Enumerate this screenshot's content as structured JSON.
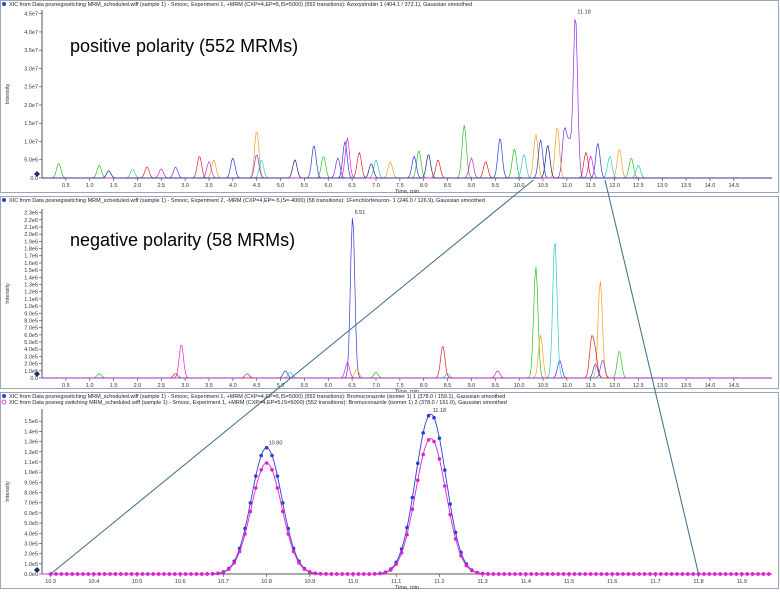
{
  "colors": {
    "frame": "#9aa7b8",
    "axis": "#555555",
    "zoom_line": "#3b6a87",
    "trace_blue": "#2b3ed6",
    "trace_magenta": "#e020d0",
    "trace_purple": "#8a2be2",
    "trace_green": "#28c028",
    "trace_cyan": "#30c8c8",
    "trace_orange": "#f0a020",
    "trace_red": "#e02020",
    "trace_dkblue": "#1a2b7a"
  },
  "chart_data": [
    {
      "type": "line",
      "title": "XIC from Data posnegswitching MRM_scheduled.wiff (sample 1) - Smooc, Experiment 1, +MRM (CXP=4,EP=5,IS=5000) (552 transitions): Azoxystrobin 1 (404.1 / 372.1), Gaussian smoothed",
      "overlay_label": "positive polarity (552 MRMs)",
      "xlabel": "Time, min",
      "ylabel": "Intensity",
      "xlim": [
        0,
        15.3
      ],
      "ylim": [
        0,
        46000000
      ],
      "x_ticks": [
        0.5,
        1.0,
        1.5,
        2.0,
        2.5,
        3.0,
        3.5,
        4.0,
        4.5,
        5.0,
        5.5,
        6.0,
        6.5,
        7.0,
        7.5,
        8.0,
        8.5,
        9.0,
        9.5,
        10.0,
        10.5,
        11.0,
        11.5,
        12.0,
        12.5,
        13.0,
        13.5,
        14.0,
        14.5
      ],
      "x_tick_labels": [
        "0.5",
        "1.0",
        "1.5",
        "2.0",
        "2.5",
        "3.0",
        "3.5",
        "4.0",
        "4.5",
        "5.0",
        "5.5",
        "6.0",
        "6.5",
        "7.0",
        "7.5",
        "8.0",
        "8.5",
        "9.0",
        "9.5",
        "10.0",
        "10.5",
        "11.0",
        "11.5",
        "12.0",
        "12.5",
        "13.0",
        "13.5",
        "14.0",
        "14.5"
      ],
      "y_ticks": [
        0,
        5000000,
        10000000,
        15000000,
        20000000,
        25000000,
        30000000,
        35000000,
        40000000,
        45000000
      ],
      "y_tick_labels": [
        "0.0",
        "5.0e6",
        "1.0e7",
        "1.5e7",
        "2.0e7",
        "2.5e7",
        "3.0e7",
        "3.5e7",
        "4.0e7",
        "4.5e7"
      ],
      "peak_labels": [
        {
          "x": 11.18,
          "y": 44500000,
          "text": "11.18"
        }
      ],
      "series": [
        {
          "color": "trace_purple",
          "peaks": [
            [
              11.18,
              44500000
            ],
            [
              11.05,
              9000000
            ],
            [
              10.95,
              13000000
            ],
            [
              4.5,
              6500000
            ],
            [
              2.8,
              3000000
            ],
            [
              6.2,
              5500000
            ]
          ]
        },
        {
          "color": "trace_orange",
          "peaks": [
            [
              4.5,
              13000000
            ],
            [
              10.35,
              12000000
            ],
            [
              10.8,
              14000000
            ],
            [
              12.1,
              8000000
            ],
            [
              3.6,
              5000000
            ],
            [
              7.3,
              4500000
            ]
          ]
        },
        {
          "color": "trace_green",
          "peaks": [
            [
              8.85,
              14500000
            ],
            [
              0.35,
              4000000
            ],
            [
              1.2,
              3500000
            ],
            [
              7.9,
              7500000
            ],
            [
              9.9,
              8000000
            ],
            [
              12.35,
              5500000
            ],
            [
              5.9,
              6000000
            ]
          ]
        },
        {
          "color": "trace_blue",
          "peaks": [
            [
              5.7,
              9000000
            ],
            [
              6.35,
              10000000
            ],
            [
              9.6,
              11000000
            ],
            [
              10.45,
              10500000
            ],
            [
              11.65,
              9500000
            ],
            [
              4.0,
              5500000
            ],
            [
              7.8,
              6000000
            ]
          ]
        },
        {
          "color": "trace_red",
          "peaks": [
            [
              3.3,
              6000000
            ],
            [
              6.65,
              7000000
            ],
            [
              8.3,
              5000000
            ],
            [
              11.4,
              7000000
            ],
            [
              2.2,
              3000000
            ],
            [
              9.3,
              4500000
            ]
          ]
        },
        {
          "color": "trace_cyan",
          "peaks": [
            [
              4.6,
              5000000
            ],
            [
              7.0,
              5000000
            ],
            [
              10.1,
              6500000
            ],
            [
              11.9,
              6000000
            ],
            [
              12.5,
              3500000
            ],
            [
              1.9,
              2500000
            ]
          ]
        },
        {
          "color": "trace_magenta",
          "peaks": [
            [
              6.4,
              11000000
            ],
            [
              3.5,
              4500000
            ],
            [
              9.0,
              5500000
            ],
            [
              11.5,
              6000000
            ],
            [
              2.5,
              2500000
            ]
          ]
        },
        {
          "color": "trace_dkblue",
          "peaks": [
            [
              5.3,
              5000000
            ],
            [
              8.1,
              6500000
            ],
            [
              10.6,
              9000000
            ],
            [
              6.9,
              4000000
            ],
            [
              1.4,
              2000000
            ]
          ]
        }
      ]
    },
    {
      "type": "line",
      "title": "XIC from Data posnegswitching MRM_scheduled.wiff (sample 1) - Smooc, Experiment 2, -MRM (CXP=4,EP=-5,IS=-4000) (58 transitions): 1Fenchlorfenuron- 1 (246.0 / 126.9), Gaussian smoothed",
      "overlay_label": "negative polarity (58 MRMs)",
      "xlabel": "Time, min",
      "ylabel": "Intensity",
      "xlim": [
        0,
        15.3
      ],
      "ylim": [
        0,
        2350000
      ],
      "x_ticks": [
        0.5,
        1.0,
        1.5,
        2.0,
        2.5,
        3.0,
        3.5,
        4.0,
        4.5,
        5.0,
        5.5,
        6.0,
        6.5,
        7.0,
        7.5,
        8.0,
        8.5,
        9.0,
        9.5,
        10.0,
        10.5,
        11.0,
        11.5,
        12.0,
        12.5,
        13.0,
        13.5,
        14.0,
        14.5
      ],
      "x_tick_labels": [
        "0.5",
        "1.0",
        "1.5",
        "2.0",
        "2.5",
        "3.0",
        "3.5",
        "4.0",
        "4.5",
        "5.0",
        "5.5",
        "6.0",
        "6.5",
        "7.0",
        "7.5",
        "8.0",
        "8.5",
        "9.0",
        "9.5",
        "10.0",
        "10.5",
        "11.0",
        "11.5",
        "12.0",
        "12.5",
        "13.0",
        "13.5",
        "14.0",
        "14.5"
      ],
      "y_ticks": [
        0,
        100000,
        200000,
        300000,
        400000,
        500000,
        600000,
        700000,
        800000,
        900000,
        1000000,
        1100000,
        1200000,
        1300000,
        1400000,
        1500000,
        1600000,
        1700000,
        1800000,
        1900000,
        2000000,
        2100000,
        2200000,
        2300000
      ],
      "y_tick_labels": [
        "0.0",
        "1.0e5",
        "2.0e5",
        "3.0e5",
        "4.0e5",
        "5.0e5",
        "6.0e5",
        "7.0e5",
        "8.0e5",
        "9.0e5",
        "1.0e6",
        "1.1e6",
        "1.2e6",
        "1.3e6",
        "1.4e6",
        "1.5e6",
        "1.6e6",
        "1.7e6",
        "1.8e6",
        "1.9e6",
        "2.0e6",
        "2.1e6",
        "2.2e6",
        "2.3e6"
      ],
      "peak_labels": [
        {
          "x": 6.51,
          "y": 2250000,
          "text": "6.51"
        }
      ],
      "series": [
        {
          "color": "trace_blue",
          "peaks": [
            [
              6.51,
              2250000
            ],
            [
              5.1,
              100000
            ],
            [
              10.85,
              250000
            ],
            [
              11.6,
              200000
            ]
          ]
        },
        {
          "color": "trace_magenta",
          "peaks": [
            [
              2.92,
              470000
            ],
            [
              6.4,
              220000
            ],
            [
              9.55,
              100000
            ]
          ]
        },
        {
          "color": "trace_green",
          "peaks": [
            [
              10.35,
              1550000
            ],
            [
              12.1,
              380000
            ],
            [
              1.2,
              60000
            ],
            [
              7.0,
              80000
            ]
          ]
        },
        {
          "color": "trace_cyan",
          "peaks": [
            [
              10.75,
              1930000
            ],
            [
              5.2,
              80000
            ],
            [
              8.5,
              60000
            ]
          ]
        },
        {
          "color": "trace_orange",
          "peaks": [
            [
              11.7,
              1350000
            ],
            [
              10.45,
              600000
            ],
            [
              6.6,
              120000
            ]
          ]
        },
        {
          "color": "trace_red",
          "peaks": [
            [
              8.4,
              450000
            ],
            [
              11.52,
              520000
            ],
            [
              11.6,
              300000
            ],
            [
              2.8,
              60000
            ]
          ]
        },
        {
          "color": "trace_purple",
          "peaks": [
            [
              11.75,
              250000
            ],
            [
              4.3,
              60000
            ]
          ]
        }
      ]
    },
    {
      "type": "line",
      "title": "XIC from Data posnegswitching MRM_scheduled.wiff (sample 1) - Smooc, Experiment 1, +MRM (CXP=4,EP=5,IS=5000) (552 transitions): Bromuconazole (isomer 1) 1 (378.0 / 159.1), Gaussian smoothed",
      "subtitle": "XIC from Data posneg switching MRM_scheduled.wiff (sample 1) - Smooc, Experiment 1, +MRM (CXP=4,EP=5,IS=5000) (552 transitions): Bromuconazole (isomer 1) 2 (378.0 / 161.0), Gaussian smoothed",
      "xlabel": "Time, min",
      "ylabel": "Intensity",
      "xlim": [
        10.28,
        11.97
      ],
      "ylim": [
        0,
        1620000
      ],
      "x_ticks": [
        10.3,
        10.4,
        10.5,
        10.6,
        10.7,
        10.8,
        10.9,
        11.0,
        11.1,
        11.2,
        11.3,
        11.4,
        11.5,
        11.6,
        11.7,
        11.8,
        11.9
      ],
      "x_tick_labels": [
        "10.3",
        "10.4",
        "10.5",
        "10.6",
        "10.7",
        "10.8",
        "10.9",
        "11.0",
        "11.1",
        "11.2",
        "11.3",
        "11.4",
        "11.5",
        "11.6",
        "11.7",
        "11.8",
        "11.9"
      ],
      "y_ticks": [
        0,
        100000,
        200000,
        300000,
        400000,
        500000,
        600000,
        700000,
        800000,
        900000,
        1000000,
        1100000,
        1200000,
        1300000,
        1400000,
        1500000
      ],
      "y_tick_labels": [
        "0.0e0",
        "1.0e5",
        "2.0e5",
        "3.0e5",
        "4.0e5",
        "5.0e5",
        "6.0e5",
        "7.0e5",
        "8.0e5",
        "9.0e5",
        "1.0e6",
        "1.1e6",
        "1.2e6",
        "1.3e6",
        "1.4e6",
        "1.5e6"
      ],
      "peak_labels": [
        {
          "x": 10.8,
          "y": 1250000,
          "text": "10.80"
        },
        {
          "x": 11.18,
          "y": 1570000,
          "text": "11.18"
        }
      ],
      "series": [
        {
          "color": "trace_blue",
          "marker": "circle",
          "peaks": [
            [
              10.8,
              1240000
            ],
            [
              11.18,
              1570000
            ]
          ],
          "width": 0.035
        },
        {
          "color": "trace_magenta",
          "marker": "circle",
          "peaks": [
            [
              10.8,
              1090000
            ],
            [
              11.18,
              1330000
            ]
          ],
          "width": 0.035
        }
      ]
    }
  ]
}
